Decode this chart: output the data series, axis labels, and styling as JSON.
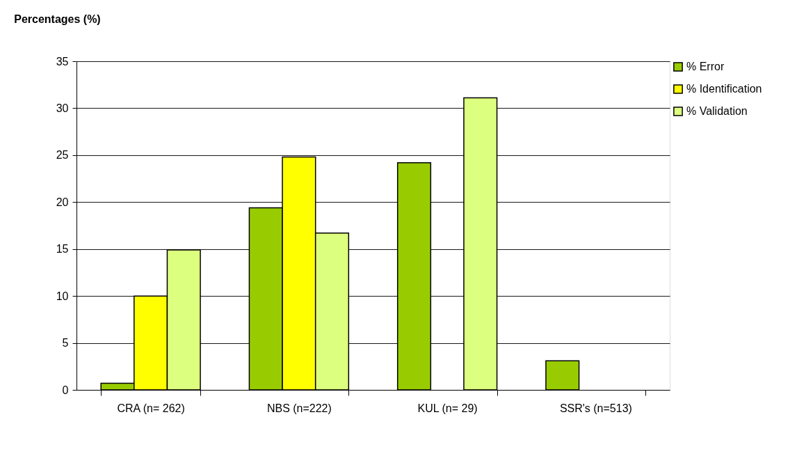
{
  "chart_data": {
    "type": "bar",
    "title": "Percentages (%)",
    "categories": [
      "CRA (n= 262)",
      "NBS (n=222)",
      "KUL (n= 29)",
      "SSR's (n=513)"
    ],
    "series": [
      {
        "name": "% Error",
        "color": "#99cc00",
        "values": [
          0.7,
          19.4,
          24.2,
          3.1
        ]
      },
      {
        "name": "% Identification",
        "color": "#ffff00",
        "values": [
          10,
          24.8,
          null,
          null
        ]
      },
      {
        "name": "% Validation",
        "color": "#ddff80",
        "values": [
          14.9,
          16.7,
          31.1,
          null
        ]
      }
    ],
    "ylim": [
      0,
      35
    ],
    "yticks": [
      0,
      5,
      10,
      15,
      20,
      25,
      30,
      35
    ],
    "grid": "y",
    "legend": "right"
  }
}
